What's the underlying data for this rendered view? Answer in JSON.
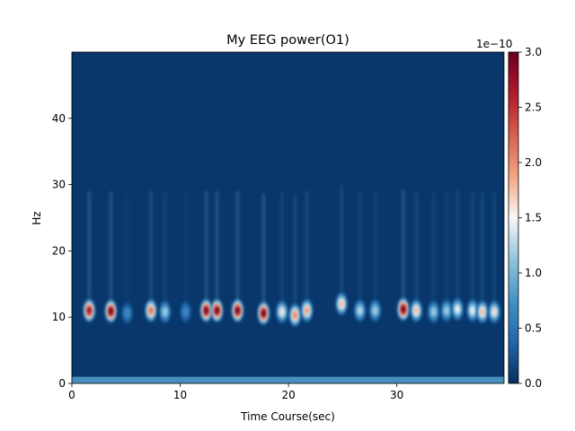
{
  "chart_data": {
    "type": "heatmap",
    "title": "My EEG power(O1)",
    "xlabel": "Time Course(sec)",
    "ylabel": "Hz",
    "xlim": [
      0,
      39.9
    ],
    "ylim": [
      0,
      50
    ],
    "x_ticks": [
      0,
      10,
      20,
      30
    ],
    "y_ticks": [
      0,
      10,
      20,
      30,
      40
    ],
    "colorbar": {
      "label_offset": "1e−10",
      "range": [
        0.0,
        3.0
      ],
      "ticks": [
        0.0,
        0.5,
        1.0,
        1.5,
        2.0,
        2.5,
        3.0
      ],
      "tick_labels": [
        "0.0",
        "0.5",
        "1.0",
        "1.5",
        "2.0",
        "2.5",
        "3.0"
      ],
      "colormap": "RdBu_r",
      "colors": [
        "#053061",
        "#2166ac",
        "#4393c3",
        "#92c5de",
        "#f7f7f7",
        "#f4a582",
        "#d6604d",
        "#b2182b",
        "#67001f"
      ]
    },
    "background_value": 0.05,
    "bursts": [
      {
        "t": 1.6,
        "f": 11.0,
        "power": 2.8
      },
      {
        "t": 3.6,
        "f": 10.9,
        "power": 3.0
      },
      {
        "t": 5.1,
        "f": 10.6,
        "power": 0.7
      },
      {
        "t": 7.3,
        "f": 11.0,
        "power": 2.2
      },
      {
        "t": 8.6,
        "f": 10.8,
        "power": 1.2
      },
      {
        "t": 10.5,
        "f": 10.8,
        "power": 0.7
      },
      {
        "t": 12.4,
        "f": 11.0,
        "power": 3.0
      },
      {
        "t": 13.4,
        "f": 11.0,
        "power": 3.0
      },
      {
        "t": 15.3,
        "f": 11.0,
        "power": 3.0
      },
      {
        "t": 17.7,
        "f": 10.6,
        "power": 3.0
      },
      {
        "t": 19.4,
        "f": 10.8,
        "power": 1.6
      },
      {
        "t": 20.6,
        "f": 10.3,
        "power": 2.1
      },
      {
        "t": 21.7,
        "f": 11.0,
        "power": 2.0
      },
      {
        "t": 24.9,
        "f": 12.0,
        "power": 1.8
      },
      {
        "t": 26.6,
        "f": 11.0,
        "power": 1.3
      },
      {
        "t": 28.0,
        "f": 11.0,
        "power": 1.2
      },
      {
        "t": 30.6,
        "f": 11.2,
        "power": 3.0
      },
      {
        "t": 31.8,
        "f": 11.0,
        "power": 1.8
      },
      {
        "t": 33.4,
        "f": 10.8,
        "power": 1.2
      },
      {
        "t": 34.6,
        "f": 11.0,
        "power": 1.2
      },
      {
        "t": 35.6,
        "f": 11.2,
        "power": 1.5
      },
      {
        "t": 37.0,
        "f": 11.0,
        "power": 1.5
      },
      {
        "t": 37.9,
        "f": 10.8,
        "power": 1.8
      },
      {
        "t": 39.0,
        "f": 10.8,
        "power": 1.6
      }
    ],
    "baseline_band": {
      "f_min": 0.0,
      "f_max": 1.0,
      "power": 0.8
    }
  }
}
